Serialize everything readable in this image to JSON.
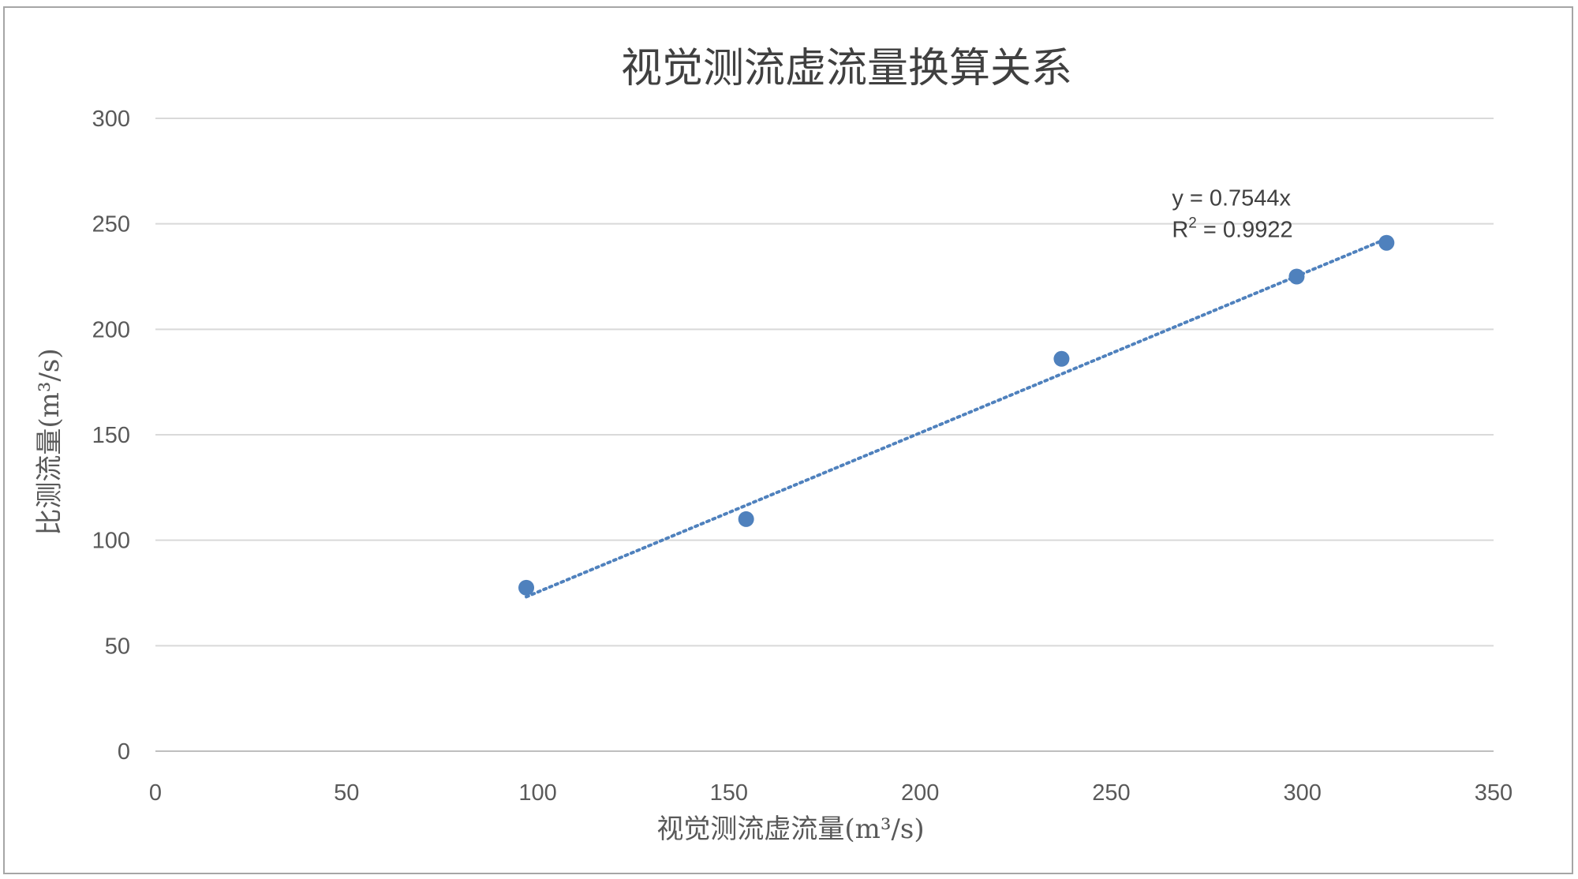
{
  "chart_data": {
    "type": "scatter",
    "title": "视觉测流虚流量换算关系",
    "xlabel": "视觉测流虚流量(m³/s)",
    "ylabel": "比测流量(m³/s)",
    "xlim": [
      0,
      350
    ],
    "ylim": [
      0,
      300
    ],
    "x_ticks": [
      "0",
      "50",
      "100",
      "150",
      "200",
      "250",
      "300",
      "350"
    ],
    "y_ticks": [
      "0",
      "50",
      "100",
      "150",
      "200",
      "250",
      "300"
    ],
    "grid": "horizontal",
    "legend": "none",
    "series": [
      {
        "points": [
          {
            "x": 97,
            "y": 77.5
          },
          {
            "x": 154.5,
            "y": 110
          },
          {
            "x": 237,
            "y": 186
          },
          {
            "x": 298.5,
            "y": 225
          },
          {
            "x": 322,
            "y": 241
          }
        ],
        "color": "#4f81bd"
      }
    ],
    "trendline": {
      "type": "linear-through-origin",
      "slope": 0.7544,
      "x_range": [
        97,
        322
      ],
      "style": "dotted",
      "color": "#4f81bd",
      "equation_label": "y = 0.7544x",
      "r2_label_prefix": "R",
      "r2_label_sup": "2",
      "r2_label_suffix": " = 0.9922"
    }
  }
}
